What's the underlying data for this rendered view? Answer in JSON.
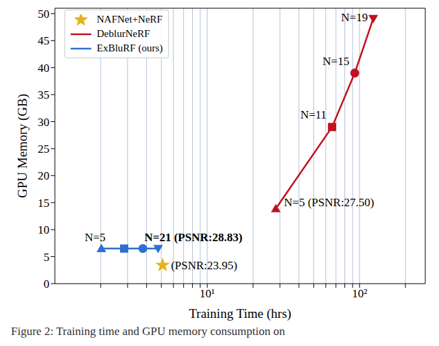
{
  "chart_data": {
    "type": "line",
    "x_label": "Training Time (hrs)",
    "y_label": "GPU Memory (GB)",
    "caption": "Figure 2: Training time and GPU memory consumption on",
    "log": "x",
    "grid": "x",
    "legend": "upper left",
    "xlim": [
      1,
      270
    ],
    "xticks": [
      {
        "value": 10,
        "label": "10¹"
      },
      {
        "value": 100,
        "label": "10²"
      }
    ],
    "x_minor_ticks": [
      2,
      3,
      4,
      5,
      6,
      7,
      8,
      9,
      20,
      30,
      40,
      50,
      60,
      70,
      80,
      90,
      200
    ],
    "ylim": [
      0,
      51
    ],
    "yticks": [
      0,
      5,
      10,
      15,
      20,
      25,
      30,
      35,
      40,
      45,
      50
    ],
    "series": [
      {
        "name": "NAFNet+NeRF",
        "type": "scatter",
        "marker": "star",
        "color": "#e8b21a",
        "x": [
          5.1
        ],
        "values": [
          3.4
        ],
        "point_labels": [
          "(PSNR:23.95)"
        ]
      },
      {
        "name": "DeblurNeRF",
        "type": "line",
        "color": "#c1121f",
        "x": [
          28.2,
          66,
          93,
          123
        ],
        "values": [
          13.9,
          29.0,
          39.0,
          49.1
        ],
        "point_labels": [
          "N=5 (PSNR:27.50)",
          "N=11",
          "N=15",
          "N=19"
        ]
      },
      {
        "name": "ExBluRF (ours)",
        "type": "line",
        "color": "#2f6fd0",
        "x": [
          2.02,
          2.85,
          3.78,
          4.76
        ],
        "values": [
          6.5,
          6.5,
          6.5,
          6.5
        ],
        "point_labels": [
          "N=5",
          null,
          null,
          "N=21 (PSNR:28.83)"
        ]
      }
    ]
  }
}
